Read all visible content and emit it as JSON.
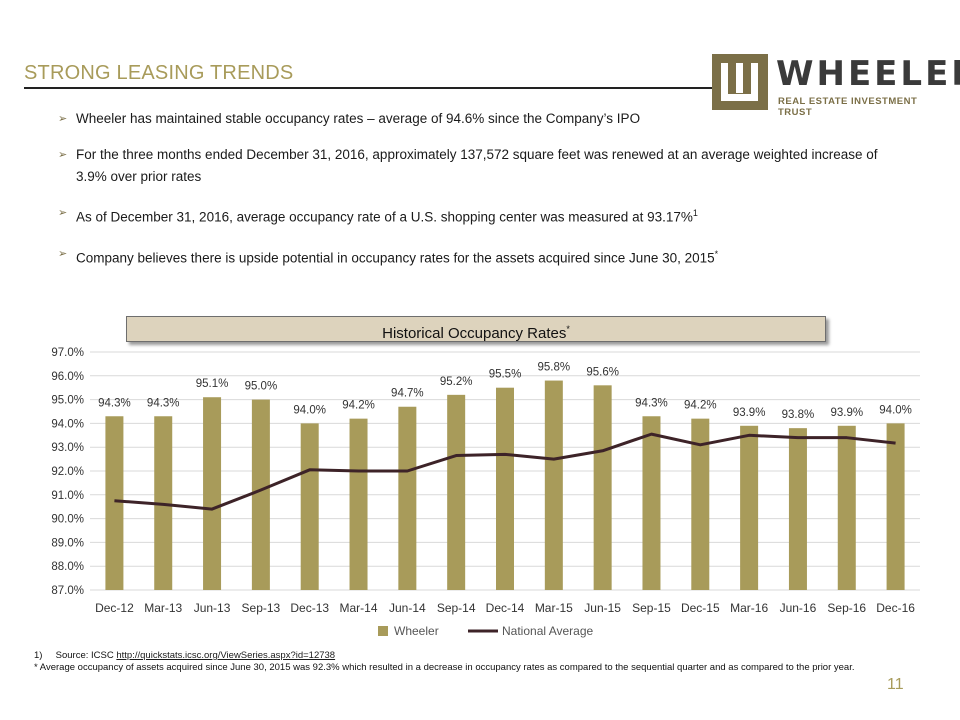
{
  "header": {
    "title": "STRONG LEASING TRENDS",
    "logo_word": "WHEELER",
    "logo_sub": "REAL ESTATE INVESTMENT TRUST"
  },
  "bullets": [
    {
      "text": "Wheeler has maintained stable occupancy rates – average of 94.6% since the Company’s IPO",
      "sup": ""
    },
    {
      "text": "For the three months ended December 31, 2016, approximately 137,572 square feet was renewed at an average weighted increase of 3.9% over prior rates",
      "sup": ""
    },
    {
      "text": "As of December 31, 2016, average occupancy rate of a U.S. shopping center was measured at 93.17%",
      "sup": "1"
    },
    {
      "text": "Company believes there is upside potential in occupancy rates for the assets acquired since June 30, 2015",
      "sup": "*"
    }
  ],
  "chart_data": {
    "type": "bar",
    "title": "Historical Occupancy Rates",
    "title_sup": "*",
    "categories": [
      "Dec-12",
      "Mar-13",
      "Jun-13",
      "Sep-13",
      "Dec-13",
      "Mar-14",
      "Jun-14",
      "Sep-14",
      "Dec-14",
      "Mar-15",
      "Jun-15",
      "Sep-15",
      "Dec-15",
      "Mar-16",
      "Jun-16",
      "Sep-16",
      "Dec-16"
    ],
    "series": [
      {
        "name": "Wheeler",
        "type": "bar",
        "values": [
          94.3,
          94.3,
          95.1,
          95.0,
          94.0,
          94.2,
          94.7,
          95.2,
          95.5,
          95.8,
          95.6,
          94.3,
          94.2,
          93.9,
          93.8,
          93.9,
          94.0
        ],
        "labels": [
          "94.3%",
          "94.3%",
          "95.1%",
          "95.0%",
          "94.0%",
          "94.2%",
          "94.7%",
          "95.2%",
          "95.5%",
          "95.8%",
          "95.6%",
          "94.3%",
          "94.2%",
          "93.9%",
          "93.8%",
          "93.9%",
          "94.0%"
        ]
      },
      {
        "name": "National Average",
        "type": "line",
        "values": [
          90.75,
          90.6,
          90.4,
          91.2,
          92.05,
          92.0,
          92.0,
          92.65,
          92.7,
          92.5,
          92.85,
          93.55,
          93.1,
          93.5,
          93.4,
          93.4,
          93.17
        ]
      }
    ],
    "yticks": [
      "87.0%",
      "88.0%",
      "89.0%",
      "90.0%",
      "91.0%",
      "92.0%",
      "93.0%",
      "94.0%",
      "95.0%",
      "96.0%",
      "97.0%"
    ],
    "ylim": [
      87,
      97
    ],
    "grid": true,
    "legend": "bottom",
    "colors": {
      "bar": "#a89b5a",
      "line": "#3d2328",
      "grid": "#d9d9d9"
    }
  },
  "footnotes": {
    "source_prefix": "1)     Source: ICSC ",
    "source_link": "http://quickstats.icsc.org/ViewSeries.aspx?id=12738",
    "note": "* Average occupancy of assets acquired since June 30, 2015 was 92.3% which resulted in a decrease in occupancy rates as compared to the sequential quarter and as compared to  the prior year."
  },
  "page_number": "11"
}
